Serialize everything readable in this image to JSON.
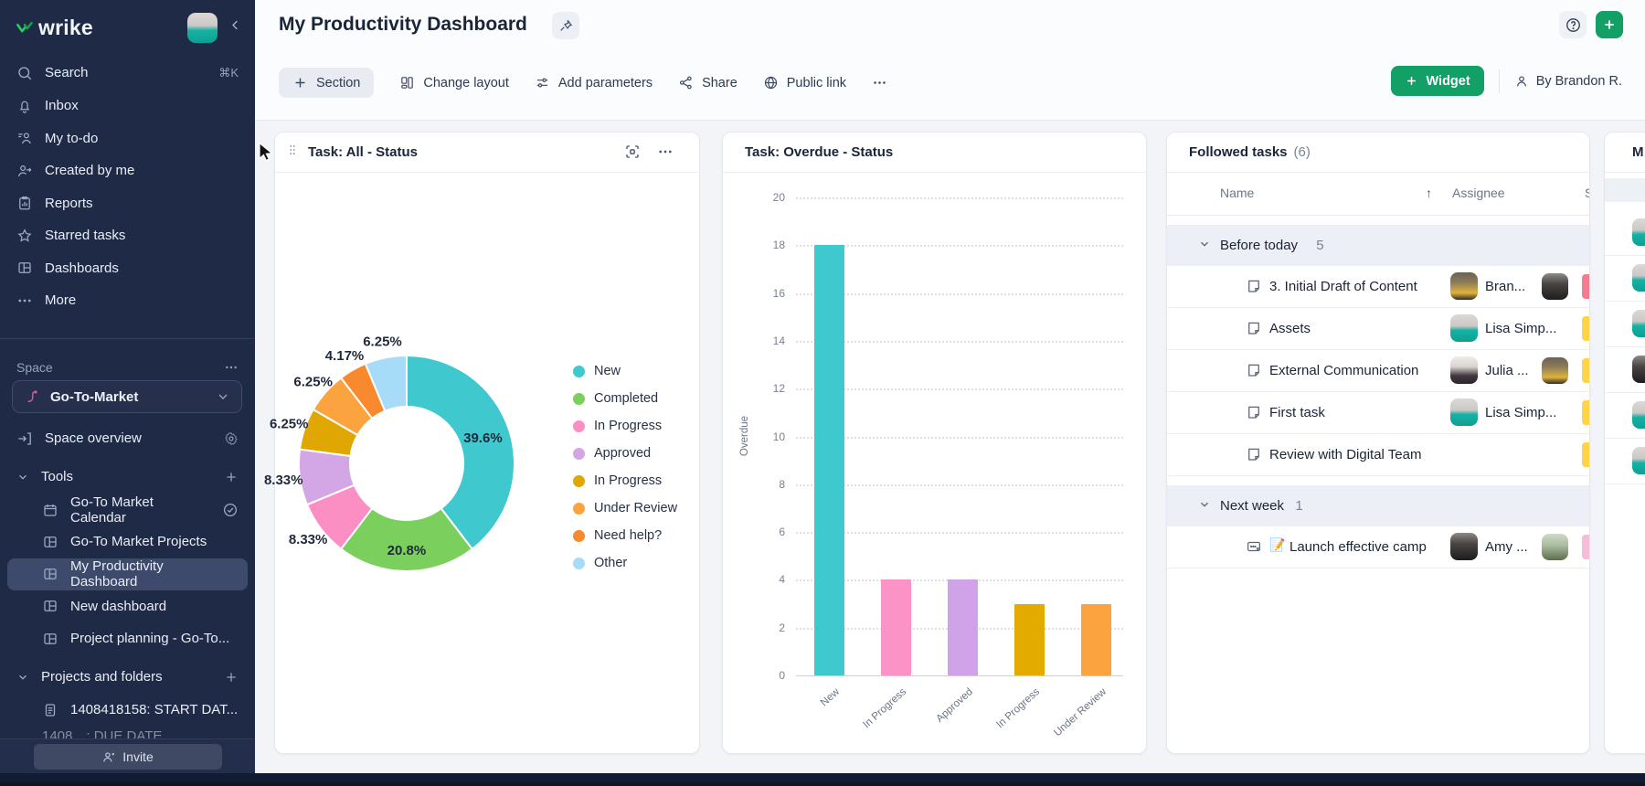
{
  "app": {
    "accent_green": "#12A066",
    "sidebar_bg": "#1F2A47"
  },
  "sidebar": {
    "logo_text": "wrike",
    "search": {
      "label": "Search",
      "shortcut": "⌘K"
    },
    "menu": [
      {
        "icon": "bell",
        "label": "Inbox"
      },
      {
        "icon": "todo",
        "label": "My to-do"
      },
      {
        "icon": "person-arrow",
        "label": "Created by me"
      },
      {
        "icon": "report",
        "label": "Reports"
      },
      {
        "icon": "star",
        "label": "Starred tasks"
      },
      {
        "icon": "board",
        "label": "Dashboards"
      },
      {
        "icon": "dots",
        "label": "More"
      }
    ],
    "space": {
      "label": "Space",
      "selected_space": "Go-To-Market",
      "overview": "Space overview",
      "tools_label": "Tools",
      "tools": [
        {
          "icon": "calendar",
          "label": "Go-To Market Calendar",
          "trailing": "check-circle"
        },
        {
          "icon": "board",
          "label": "Go-To Market Projects"
        },
        {
          "icon": "board",
          "label": "My Productivity Dashboard",
          "selected": true
        },
        {
          "icon": "board",
          "label": "New dashboard"
        },
        {
          "icon": "board",
          "label": "Project planning - Go-To..."
        }
      ],
      "projects_label": "Projects and folders",
      "projects": [
        {
          "icon": "note",
          "label": "1408418158: START DAT..."
        }
      ],
      "partial_project": "1408…: DUE DATE"
    },
    "invite": "Invite"
  },
  "header": {
    "title": "My Productivity Dashboard",
    "toolbar": [
      {
        "icon": "plus",
        "label": "Section",
        "style": "pill"
      },
      {
        "icon": "layout",
        "label": "Change layout"
      },
      {
        "icon": "sliders",
        "label": "Add parameters"
      },
      {
        "icon": "share",
        "label": "Share"
      },
      {
        "icon": "globe",
        "label": "Public link"
      },
      {
        "icon": "dots",
        "label": ""
      }
    ],
    "widget_button": "Widget",
    "byline": "By Brandon R."
  },
  "widgets": {
    "donut": {
      "title": "Task: All - Status"
    },
    "bar": {
      "title": "Task: Overdue - Status"
    },
    "followed": {
      "title": "Followed tasks",
      "count": "(6)",
      "columns": {
        "name": "Name",
        "sort": "↑",
        "assignee": "Assignee",
        "clipped": "S"
      },
      "groups": [
        {
          "label": "Before today",
          "count": "5",
          "rows": [
            {
              "icon": "task",
              "name": "3. Initial Draft of Content",
              "assignee": "Bran...",
              "avatar": "brandon",
              "avatar2": "amy",
              "pill": "#F27D93"
            },
            {
              "icon": "task",
              "name": "Assets",
              "assignee": "Lisa Simp...",
              "avatar": "lisa",
              "pill": "#FFD449"
            },
            {
              "icon": "task",
              "name": "External Communication",
              "assignee": "Julia ...",
              "avatar": "julia",
              "avatar2": "brandon",
              "pill": "#FFD449"
            },
            {
              "icon": "task",
              "name": "First task",
              "assignee": "Lisa Simp...",
              "avatar": "lisa",
              "pill": "#FFD449"
            },
            {
              "icon": "task",
              "name": "Review with Digital Team",
              "pill": "#FFD449"
            }
          ]
        },
        {
          "label": "Next week",
          "count": "1",
          "rows": [
            {
              "icon": "milestone",
              "emoji": "📝",
              "name": "Launch effective camp",
              "assignee": "Amy ...",
              "avatar": "amy",
              "avatar2": "green",
              "pill": "#F6BCD8"
            }
          ]
        }
      ]
    },
    "partial": {
      "title": "M",
      "rows": [
        {
          "avatar": "lisa"
        },
        {
          "avatar": "lisa"
        },
        {
          "avatar": "lisa"
        },
        {
          "avatar": "amy"
        },
        {
          "avatar": "lisa"
        },
        {
          "avatar": "lisa"
        }
      ]
    }
  },
  "chart_data": [
    {
      "type": "pie",
      "title": "Task: All - Status",
      "legend_position": "right",
      "slices": [
        {
          "label": "New",
          "pct": 39.6,
          "pct_label": "39.6%",
          "color": "#3FC8CE"
        },
        {
          "label": "Completed",
          "pct": 20.8,
          "pct_label": "20.8%",
          "color": "#7ACF5D"
        },
        {
          "label": "In Progress",
          "pct": 8.33,
          "pct_label": "8.33%",
          "color": "#FB8FC3"
        },
        {
          "label": "Approved",
          "pct": 8.33,
          "pct_label": "8.33%",
          "color": "#D3A7E6"
        },
        {
          "label": "In Progress",
          "pct": 6.25,
          "pct_label": "6.25%",
          "color": "#E0A602"
        },
        {
          "label": "Under Review",
          "pct": 6.25,
          "pct_label": "6.25%",
          "color": "#FAA33F"
        },
        {
          "label": "Need help?",
          "pct": 4.17,
          "pct_label": "4.17%",
          "color": "#F8892D"
        },
        {
          "label": "Other",
          "pct": 6.25,
          "pct_label": "6.25%",
          "color": "#A6DCF7"
        }
      ]
    },
    {
      "type": "bar",
      "title": "Task: Overdue - Status",
      "categories": [
        "New",
        "In Progress",
        "Approved",
        "In Progress",
        "Under Review"
      ],
      "values": [
        18,
        4,
        4,
        3,
        3
      ],
      "colors": [
        "#3FC8CE",
        "#FC93C6",
        "#D0A3E8",
        "#E3AB00",
        "#FAA33F"
      ],
      "xlabel": "",
      "ylabel": "Overdue",
      "ylim": [
        0,
        20
      ],
      "ytick_step": 2,
      "grid": "dotted-horizontal"
    }
  ]
}
